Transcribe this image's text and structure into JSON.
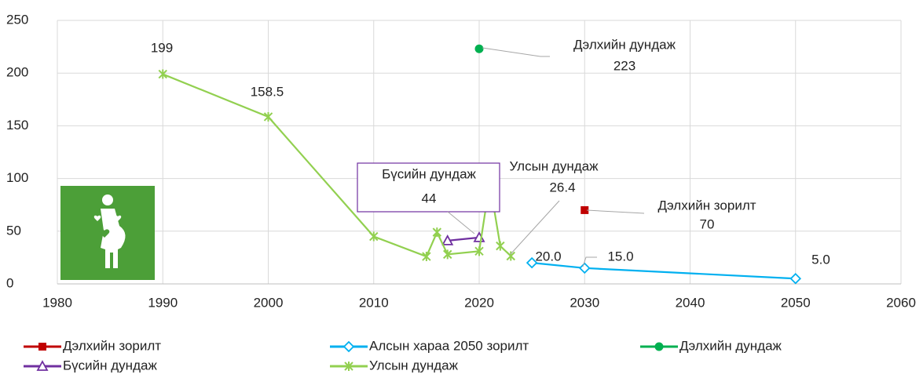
{
  "chart_data": {
    "type": "line",
    "xlim": [
      1980,
      2060
    ],
    "xticks": [
      1980,
      1990,
      2000,
      2010,
      2020,
      2030,
      2040,
      2050,
      2060
    ],
    "ylim": [
      0,
      250
    ],
    "yticks": [
      0,
      50,
      100,
      150,
      200,
      250
    ],
    "grid": true,
    "legend": "bottom",
    "series": [
      {
        "name": "Дэлхийн зорилт",
        "color": "#c00000",
        "marker": "square",
        "x": [
          2030
        ],
        "values": [
          70
        ],
        "value_labels": [
          "70"
        ]
      },
      {
        "name": "Алсын хараа 2050 зорилт",
        "color": "#00b0f0",
        "marker": "diamond",
        "x": [
          2025,
          2030,
          2050
        ],
        "values": [
          20,
          15,
          5
        ],
        "value_labels": [
          "20.0",
          "15.0",
          "5.0"
        ]
      },
      {
        "name": "Дэлхийн дундаж",
        "color": "#00b050",
        "marker": "circle",
        "x": [
          2020
        ],
        "values": [
          223
        ],
        "value_labels": [
          "223"
        ]
      },
      {
        "name": "Бүсийн дундаж",
        "color": "#7030a0",
        "marker": "triangle",
        "x": [
          2017,
          2020
        ],
        "values": [
          41,
          44
        ],
        "value_labels": [
          null,
          "44"
        ]
      },
      {
        "name": "Улсын дундаж",
        "color": "#92d050",
        "marker": "asterisk",
        "x": [
          1990,
          2000,
          2010,
          2015,
          2016,
          2017,
          2020,
          2021,
          2022,
          2023
        ],
        "values": [
          199,
          158.5,
          45,
          26,
          49,
          28,
          31,
          96,
          36,
          26.4
        ],
        "value_labels": [
          "199",
          "158.5",
          null,
          null,
          null,
          null,
          null,
          null,
          null,
          "26.4"
        ]
      }
    ]
  }
}
